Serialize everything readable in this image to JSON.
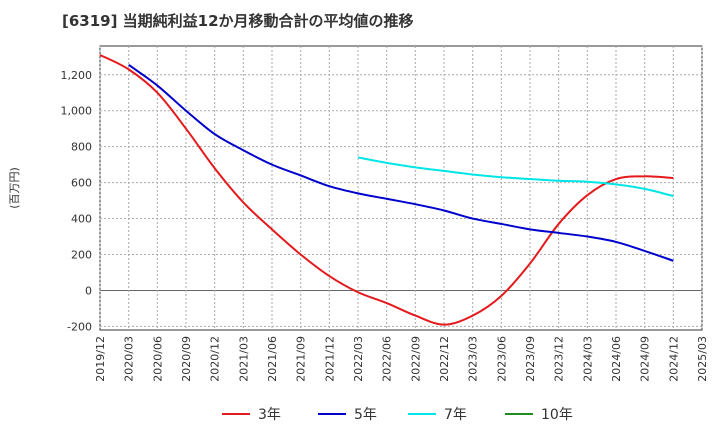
{
  "chart_data": {
    "type": "line",
    "title": "[6319]  当期純利益12か月移動合計の平均値の推移",
    "ylabel": "(百万円)",
    "xlabel": "",
    "ylim": [
      -220,
      1360
    ],
    "yticks": [
      -200,
      0,
      200,
      400,
      600,
      800,
      1000,
      1200
    ],
    "ytick_labels": [
      "-200",
      "0",
      "200",
      "400",
      "600",
      "800",
      "1,000",
      "1,200"
    ],
    "xticks": [
      "2019/12",
      "2020/03",
      "2020/06",
      "2020/09",
      "2020/12",
      "2021/03",
      "2021/06",
      "2021/09",
      "2021/12",
      "2022/03",
      "2022/06",
      "2022/09",
      "2022/12",
      "2023/03",
      "2023/06",
      "2023/09",
      "2023/12",
      "2024/03",
      "2024/06",
      "2024/09",
      "2024/12",
      "2025/03"
    ],
    "grid": true,
    "legend_position": "bottom",
    "series": [
      {
        "name": "3年",
        "color": "#e41a1c",
        "x": [
          "2019/12",
          "2020/03",
          "2020/06",
          "2020/09",
          "2020/12",
          "2021/03",
          "2021/06",
          "2021/09",
          "2021/12",
          "2022/03",
          "2022/06",
          "2022/09",
          "2022/12",
          "2023/03",
          "2023/06",
          "2023/09",
          "2023/12",
          "2024/03",
          "2024/06",
          "2024/09",
          "2024/12"
        ],
        "values": [
          1310,
          1230,
          1100,
          900,
          680,
          490,
          340,
          200,
          80,
          -10,
          -70,
          -140,
          -190,
          -140,
          -30,
          150,
          370,
          530,
          620,
          635,
          625
        ]
      },
      {
        "name": "5年",
        "color": "#0000cc",
        "x": [
          "2020/03",
          "2020/06",
          "2020/09",
          "2020/12",
          "2021/03",
          "2021/06",
          "2021/09",
          "2021/12",
          "2022/03",
          "2022/06",
          "2022/09",
          "2022/12",
          "2023/03",
          "2023/06",
          "2023/09",
          "2023/12",
          "2024/03",
          "2024/06",
          "2024/09",
          "2024/12"
        ],
        "values": [
          1255,
          1140,
          1000,
          870,
          780,
          700,
          640,
          580,
          540,
          510,
          480,
          445,
          400,
          370,
          340,
          320,
          300,
          270,
          220,
          165
        ]
      },
      {
        "name": "7年",
        "color": "#00e5e5",
        "x": [
          "2022/03",
          "2022/06",
          "2022/09",
          "2022/12",
          "2023/03",
          "2023/06",
          "2023/09",
          "2023/12",
          "2024/03",
          "2024/06",
          "2024/09",
          "2024/12"
        ],
        "values": [
          740,
          710,
          685,
          665,
          645,
          630,
          620,
          610,
          605,
          590,
          565,
          525
        ]
      },
      {
        "name": "10年",
        "color": "#228b22",
        "x": [],
        "values": []
      }
    ]
  }
}
